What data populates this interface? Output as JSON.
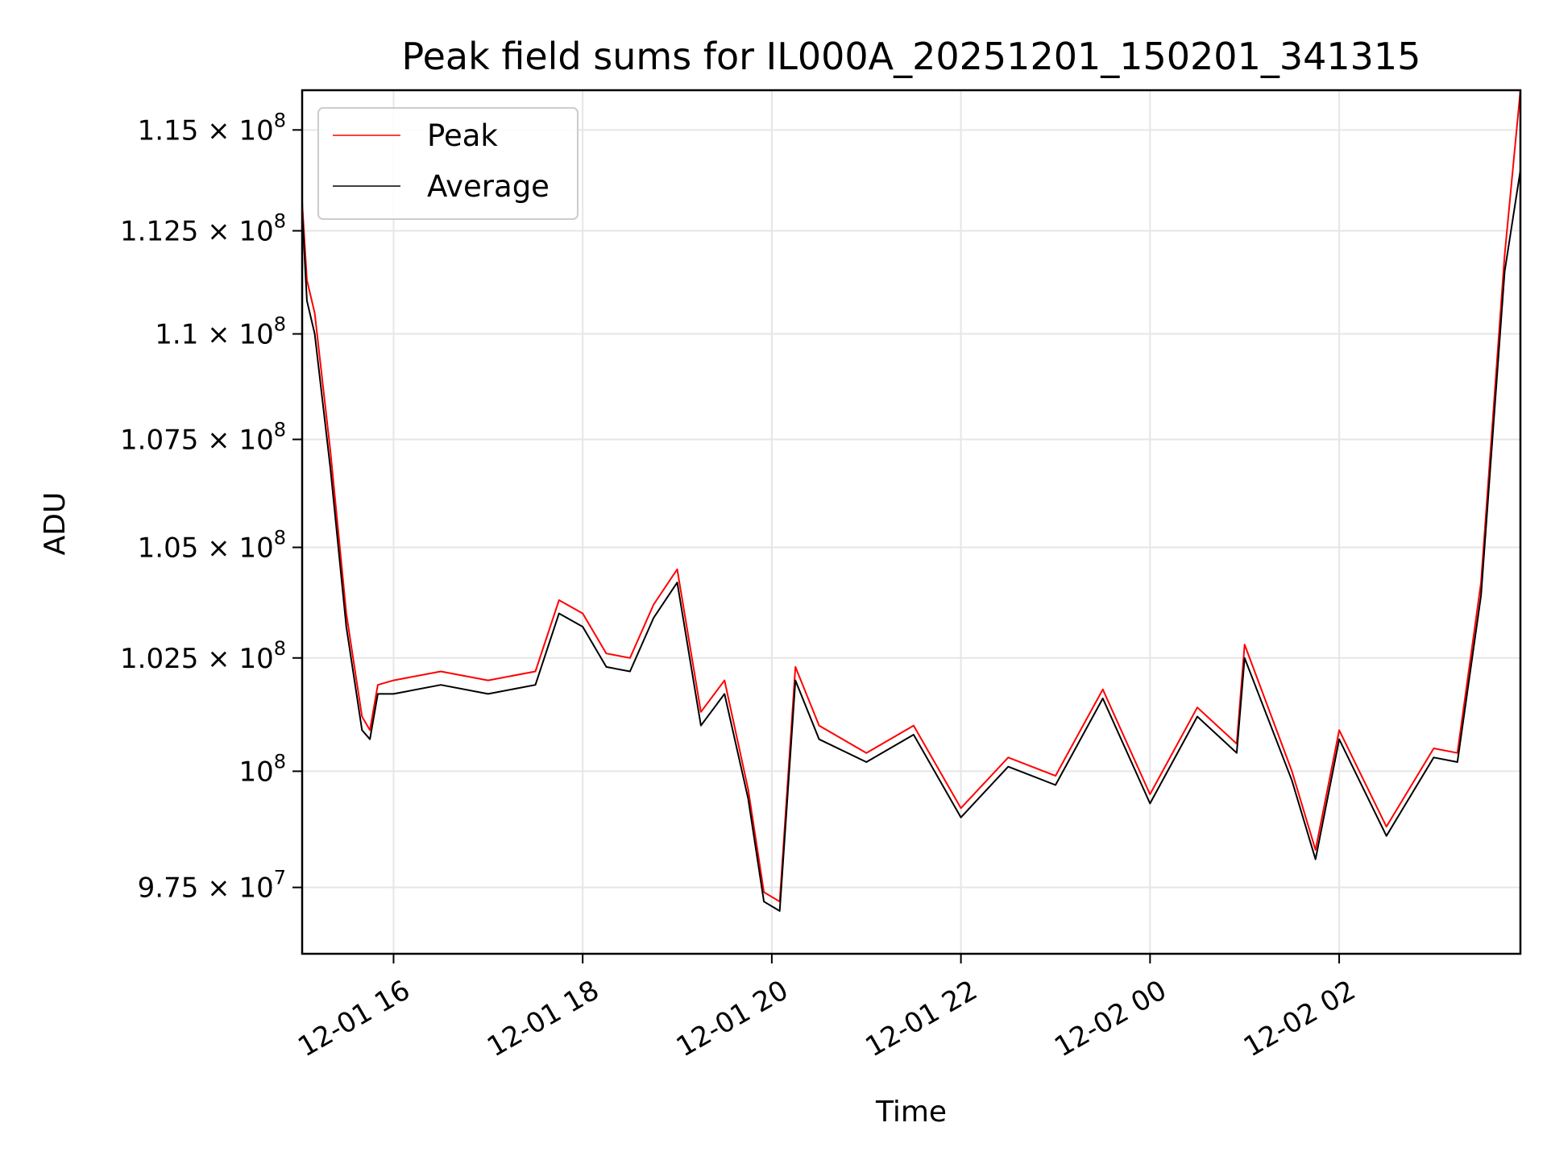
{
  "chart_data": {
    "type": "line",
    "title": "Peak field sums for IL000A_20251201_150201_341315",
    "xlabel": "Time",
    "ylabel": "ADU",
    "x_range": [
      "2025-12-01 15:02",
      "2025-12-02 03:55"
    ],
    "ylim": [
      96100000,
      116000000
    ],
    "y_scale": "log",
    "grid": true,
    "legend_position": "top-left",
    "x_ticks": [
      {
        "label": "12-01 16",
        "time": "2025-12-01 16:00"
      },
      {
        "label": "12-01 18",
        "time": "2025-12-01 18:00"
      },
      {
        "label": "12-01 20",
        "time": "2025-12-01 20:00"
      },
      {
        "label": "12-01 22",
        "time": "2025-12-01 22:00"
      },
      {
        "label": "12-02 00",
        "time": "2025-12-02 00:00"
      },
      {
        "label": "12-02 02",
        "time": "2025-12-02 02:00"
      }
    ],
    "y_ticks": [
      {
        "value": 97500000,
        "mantissa": "9.75",
        "exponent": "7"
      },
      {
        "value": 100000000,
        "mantissa": "10",
        "exponent": "8"
      },
      {
        "value": 102500000,
        "mantissa": "1.025",
        "exponent": "8"
      },
      {
        "value": 105000000,
        "mantissa": "1.05",
        "exponent": "8"
      },
      {
        "value": 107500000,
        "mantissa": "1.075",
        "exponent": "8"
      },
      {
        "value": 110000000,
        "mantissa": "1.1",
        "exponent": "8"
      },
      {
        "value": 112500000,
        "mantissa": "1.125",
        "exponent": "8"
      },
      {
        "value": 115000000,
        "mantissa": "1.15",
        "exponent": "8"
      }
    ],
    "series": [
      {
        "name": "Peak",
        "color": "#ff0000",
        "x": [
          "2025-12-01 15:02",
          "2025-12-01 15:05",
          "2025-12-01 15:10",
          "2025-12-01 15:20",
          "2025-12-01 15:30",
          "2025-12-01 15:40",
          "2025-12-01 15:45",
          "2025-12-01 15:50",
          "2025-12-01 16:00",
          "2025-12-01 16:30",
          "2025-12-01 17:00",
          "2025-12-01 17:30",
          "2025-12-01 17:45",
          "2025-12-01 18:00",
          "2025-12-01 18:15",
          "2025-12-01 18:30",
          "2025-12-01 18:45",
          "2025-12-01 19:00",
          "2025-12-01 19:15",
          "2025-12-01 19:30",
          "2025-12-01 19:45",
          "2025-12-01 19:55",
          "2025-12-01 20:05",
          "2025-12-01 20:15",
          "2025-12-01 20:30",
          "2025-12-01 21:00",
          "2025-12-01 21:30",
          "2025-12-01 22:00",
          "2025-12-01 22:30",
          "2025-12-01 23:00",
          "2025-12-01 23:30",
          "2025-12-02 00:00",
          "2025-12-02 00:30",
          "2025-12-02 00:55",
          "2025-12-02 01:00",
          "2025-12-02 01:30",
          "2025-12-02 01:45",
          "2025-12-02 02:00",
          "2025-12-02 02:30",
          "2025-12-02 03:00",
          "2025-12-02 03:15",
          "2025-12-02 03:30",
          "2025-12-02 03:45",
          "2025-12-02 03:55"
        ],
        "y": [
          113200000,
          111300000,
          110500000,
          107200000,
          103500000,
          101200000,
          100900000,
          101900000,
          102000000,
          102200000,
          102000000,
          102200000,
          103800000,
          103500000,
          102600000,
          102500000,
          103700000,
          104500000,
          101300000,
          102000000,
          99600000,
          97400000,
          97200000,
          102300000,
          101000000,
          100400000,
          101000000,
          99200000,
          100300000,
          99900000,
          101800000,
          99500000,
          101400000,
          100600000,
          102800000,
          100000000,
          98300000,
          100900000,
          98800000,
          100500000,
          100400000,
          104200000,
          111900000,
          116000000
        ]
      },
      {
        "name": "Average",
        "color": "#000000",
        "x": [
          "2025-12-01 15:02",
          "2025-12-01 15:05",
          "2025-12-01 15:10",
          "2025-12-01 15:20",
          "2025-12-01 15:30",
          "2025-12-01 15:40",
          "2025-12-01 15:45",
          "2025-12-01 15:50",
          "2025-12-01 16:00",
          "2025-12-01 16:30",
          "2025-12-01 17:00",
          "2025-12-01 17:30",
          "2025-12-01 17:45",
          "2025-12-01 18:00",
          "2025-12-01 18:15",
          "2025-12-01 18:30",
          "2025-12-01 18:45",
          "2025-12-01 19:00",
          "2025-12-01 19:15",
          "2025-12-01 19:30",
          "2025-12-01 19:45",
          "2025-12-01 19:55",
          "2025-12-01 20:05",
          "2025-12-01 20:15",
          "2025-12-01 20:30",
          "2025-12-01 21:00",
          "2025-12-01 21:30",
          "2025-12-01 22:00",
          "2025-12-01 22:30",
          "2025-12-01 23:00",
          "2025-12-01 23:30",
          "2025-12-02 00:00",
          "2025-12-02 00:30",
          "2025-12-02 00:55",
          "2025-12-02 01:00",
          "2025-12-02 01:30",
          "2025-12-02 01:45",
          "2025-12-02 02:00",
          "2025-12-02 02:30",
          "2025-12-02 03:00",
          "2025-12-02 03:15",
          "2025-12-02 03:30",
          "2025-12-02 03:45",
          "2025-12-02 03:55"
        ],
        "y": [
          113000000,
          110800000,
          110000000,
          106800000,
          103200000,
          100900000,
          100700000,
          101700000,
          101700000,
          101900000,
          101700000,
          101900000,
          103500000,
          103200000,
          102300000,
          102200000,
          103400000,
          104200000,
          101000000,
          101700000,
          99400000,
          97200000,
          97000000,
          102000000,
          100700000,
          100200000,
          100800000,
          99000000,
          100100000,
          99700000,
          101600000,
          99300000,
          101200000,
          100400000,
          102500000,
          99800000,
          98100000,
          100700000,
          98600000,
          100300000,
          100200000,
          103900000,
          111500000,
          114000000
        ]
      }
    ]
  }
}
